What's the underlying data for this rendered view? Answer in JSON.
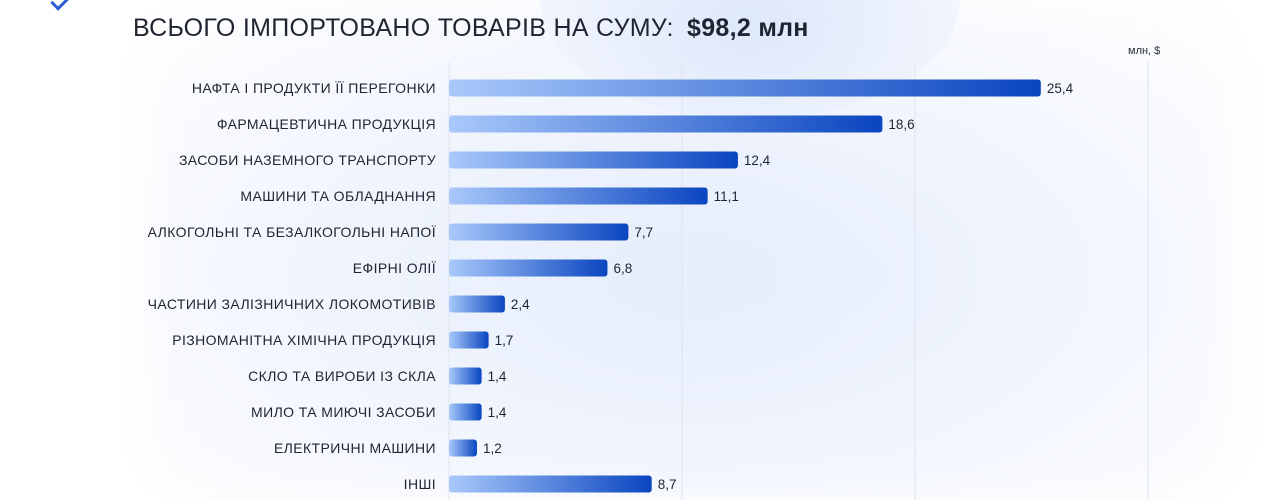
{
  "header": {
    "title": "ВСЬОГО ІМПОРТОВАНО ТОВАРІВ НА СУМУ:",
    "total": "$98,2 млн",
    "unit": "млн, $"
  },
  "colors": {
    "bar_start": "#a9c9fb",
    "bar_end": "#0a45c0",
    "grid": "#dfe4ec",
    "text": "#1f2430"
  },
  "chart_data": {
    "type": "bar",
    "orientation": "horizontal",
    "title": "ВСЬОГО ІМПОРТОВАНО ТОВАРІВ НА СУМУ: $98,2 млн",
    "unit": "млн, $",
    "xlim": [
      0,
      30
    ],
    "grid": true,
    "categories": [
      "НАФТА І ПРОДУКТИ ЇЇ ПЕРЕГОНКИ",
      "ФАРМАЦЕВТИЧНА ПРОДУКЦІЯ",
      "ЗАСОБИ НАЗЕМНОГО ТРАНСПОРТУ",
      "МАШИНИ ТА ОБЛАДНАННЯ",
      "АЛКОГОЛЬНІ ТА БЕЗАЛКОГОЛЬНІ НАПОЇ",
      "ЕФІРНІ ОЛІЇ",
      "ЧАСТИНИ ЗАЛІЗНИЧНИХ ЛОКОМОТИВІВ",
      "РІЗНОМАНІТНА ХІМІЧНА ПРОДУКЦІЯ",
      "СКЛО ТА ВИРОБИ ІЗ СКЛА",
      "МИЛО ТА МИЮЧІ ЗАСОБИ",
      "ЕЛЕКТРИЧНІ МАШИНИ",
      "ІНШІ"
    ],
    "values": [
      25.4,
      18.6,
      12.4,
      11.1,
      7.7,
      6.8,
      2.4,
      1.7,
      1.4,
      1.4,
      1.2,
      8.7
    ],
    "value_labels": [
      "25,4",
      "18,6",
      "12,4",
      "11,1",
      "7,7",
      "6,8",
      "2,4",
      "1,7",
      "1,4",
      "1,4",
      "1,2",
      "8,7"
    ]
  }
}
